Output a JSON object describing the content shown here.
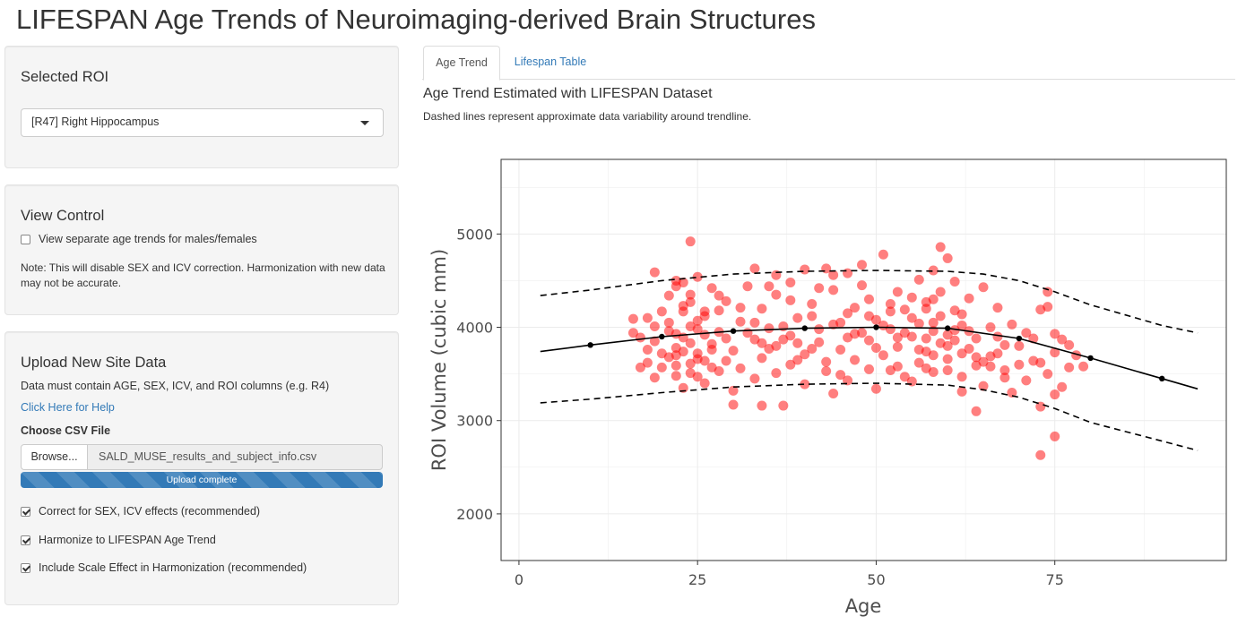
{
  "app": {
    "title": "LIFESPAN Age Trends of Neuroimaging-derived Brain Structures"
  },
  "roi_panel": {
    "heading": "Selected ROI",
    "selected_roi": "[R47] Right Hippocampus"
  },
  "view_panel": {
    "heading": "View Control",
    "sex_checkbox_label": "View separate age trends for males/females",
    "sex_checkbox_checked": false,
    "note": "Note: This will disable SEX and ICV correction. Harmonization with new data may not be accurate."
  },
  "upload_panel": {
    "heading": "Upload New Site Data",
    "instructions": "Data must contain AGE, SEX, ICV, and ROI columns (e.g. R4)",
    "help_link": "Click Here for Help",
    "file_label": "Choose CSV File",
    "browse_label": "Browse...",
    "file_name": "SALD_MUSE_results_and_subject_info.csv",
    "progress_text": "Upload complete",
    "progress_value": 1.0,
    "options": [
      {
        "label": "Correct for SEX, ICV effects (recommended)",
        "checked": true
      },
      {
        "label": "Harmonize to LIFESPAN Age Trend",
        "checked": true
      },
      {
        "label": "Include Scale Effect in Harmonization (recommended)",
        "checked": true
      }
    ]
  },
  "tabs": [
    {
      "label": "Age Trend",
      "active": true
    },
    {
      "label": "Lifespan Table",
      "active": false
    }
  ],
  "main": {
    "chart_title": "Age Trend Estimated with LIFESPAN Dataset",
    "chart_subtitle": "Dashed lines represent approximate data variability around trendline."
  },
  "colors": {
    "points": "#ff0000",
    "link": "#337ab7",
    "progress": "#337ab7"
  },
  "chart_data": {
    "type": "scatter",
    "xlabel": "Age",
    "ylabel": "ROI Volume (cubic mm)",
    "xlim": [
      -2.5,
      99
    ],
    "ylim": [
      1500,
      5800
    ],
    "xticks": [
      0,
      25,
      50,
      75
    ],
    "yticks": [
      2000,
      3000,
      4000,
      5000
    ],
    "grid": true,
    "trend": {
      "x": [
        3,
        10,
        20,
        30,
        40,
        50,
        60,
        70,
        80,
        90,
        95
      ],
      "y": [
        3740,
        3810,
        3900,
        3960,
        3990,
        4000,
        3990,
        3880,
        3670,
        3450,
        3340
      ]
    },
    "trend_markers_x": [
      10,
      20,
      30,
      40,
      50,
      60,
      70,
      80,
      90
    ],
    "upper": {
      "x": [
        3,
        10,
        20,
        30,
        40,
        50,
        60,
        65,
        70,
        75,
        80,
        90,
        95
      ],
      "y": [
        4340,
        4400,
        4500,
        4570,
        4600,
        4610,
        4600,
        4570,
        4500,
        4380,
        4240,
        4020,
        3940
      ]
    },
    "lower": {
      "x": [
        3,
        10,
        20,
        30,
        40,
        50,
        60,
        65,
        70,
        75,
        80,
        90,
        95
      ],
      "y": [
        3190,
        3230,
        3300,
        3360,
        3390,
        3400,
        3380,
        3330,
        3250,
        3130,
        2980,
        2780,
        2680
      ]
    },
    "points": [
      [
        24,
        4920
      ],
      [
        59,
        4860
      ],
      [
        51,
        4780
      ],
      [
        60,
        4740
      ],
      [
        48,
        4670
      ],
      [
        43,
        4630
      ],
      [
        58,
        4610
      ],
      [
        33,
        4630
      ],
      [
        19,
        4590
      ],
      [
        46,
        4580
      ],
      [
        25,
        4540
      ],
      [
        22,
        4500
      ],
      [
        56,
        4510
      ],
      [
        38,
        4480
      ],
      [
        61,
        4490
      ],
      [
        32,
        4440
      ],
      [
        65,
        4430
      ],
      [
        74,
        4380
      ],
      [
        27,
        4420
      ],
      [
        44,
        4400
      ],
      [
        53,
        4380
      ],
      [
        36,
        4350
      ],
      [
        21,
        4340
      ],
      [
        63,
        4310
      ],
      [
        49,
        4300
      ],
      [
        29,
        4280
      ],
      [
        57,
        4270
      ],
      [
        41,
        4250
      ],
      [
        23,
        4230
      ],
      [
        67,
        4210
      ],
      [
        34,
        4200
      ],
      [
        54,
        4190
      ],
      [
        20,
        4170
      ],
      [
        46,
        4150
      ],
      [
        62,
        4140
      ],
      [
        26,
        4120
      ],
      [
        73,
        4190
      ],
      [
        39,
        4100
      ],
      [
        50,
        4080
      ],
      [
        18,
        4100
      ],
      [
        31,
        4060
      ],
      [
        58,
        4050
      ],
      [
        44,
        4030
      ],
      [
        24,
        4010
      ],
      [
        66,
        4000
      ],
      [
        35,
        3990
      ],
      [
        52,
        3980
      ],
      [
        21,
        3960
      ],
      [
        61,
        3970
      ],
      [
        28,
        3950
      ],
      [
        47,
        3930
      ],
      [
        71,
        3940
      ],
      [
        38,
        3910
      ],
      [
        55,
        3900
      ],
      [
        23,
        3890
      ],
      [
        64,
        3880
      ],
      [
        33,
        3870
      ],
      [
        49,
        3860
      ],
      [
        76,
        3870
      ],
      [
        19,
        3850
      ],
      [
        42,
        3840
      ],
      [
        59,
        3830
      ],
      [
        27,
        3820
      ],
      [
        68,
        3810
      ],
      [
        36,
        3800
      ],
      [
        53,
        3790
      ],
      [
        22,
        3780
      ],
      [
        63,
        3770
      ],
      [
        45,
        3760
      ],
      [
        30,
        3750
      ],
      [
        57,
        3740
      ],
      [
        75,
        3730
      ],
      [
        25,
        3720
      ],
      [
        40,
        3710
      ],
      [
        51,
        3700
      ],
      [
        66,
        3690
      ],
      [
        21,
        3680
      ],
      [
        34,
        3670
      ],
      [
        60,
        3660
      ],
      [
        47,
        3650
      ],
      [
        26,
        3640
      ],
      [
        72,
        3640
      ],
      [
        43,
        3630
      ],
      [
        56,
        3620
      ],
      [
        24,
        3610
      ],
      [
        38,
        3600
      ],
      [
        64,
        3590
      ],
      [
        53,
        3580
      ],
      [
        20,
        3570
      ],
      [
        31,
        3560
      ],
      [
        77,
        3570
      ],
      [
        49,
        3550
      ],
      [
        68,
        3540
      ],
      [
        28,
        3530
      ],
      [
        58,
        3520
      ],
      [
        36,
        3510
      ],
      [
        74,
        3500
      ],
      [
        45,
        3490
      ],
      [
        22,
        3480
      ],
      [
        62,
        3470
      ],
      [
        33,
        3450
      ],
      [
        71,
        3430
      ],
      [
        55,
        3420
      ],
      [
        26,
        3400
      ],
      [
        40,
        3390
      ],
      [
        65,
        3370
      ],
      [
        76,
        3360
      ],
      [
        23,
        3350
      ],
      [
        50,
        3340
      ],
      [
        30,
        3320
      ],
      [
        69,
        3300
      ],
      [
        44,
        3290
      ],
      [
        62,
        3310
      ],
      [
        75,
        3280
      ],
      [
        30,
        3170
      ],
      [
        34,
        3160
      ],
      [
        37,
        3160
      ],
      [
        64,
        3100
      ],
      [
        73,
        3150
      ],
      [
        75,
        2830
      ],
      [
        73,
        2630
      ],
      [
        22,
        4440
      ],
      [
        24,
        4350
      ],
      [
        23,
        4170
      ],
      [
        25,
        4070
      ],
      [
        22,
        3930
      ],
      [
        24,
        3830
      ],
      [
        23,
        3740
      ],
      [
        25,
        3660
      ],
      [
        22,
        3590
      ],
      [
        24,
        3510
      ],
      [
        26,
        3920
      ],
      [
        21,
        4050
      ],
      [
        23,
        4480
      ],
      [
        24,
        4270
      ],
      [
        25,
        3980
      ],
      [
        22,
        3700
      ],
      [
        57,
        4200
      ],
      [
        58,
        3960
      ],
      [
        59,
        4120
      ],
      [
        57,
        3880
      ],
      [
        56,
        4040
      ],
      [
        58,
        3700
      ],
      [
        60,
        3800
      ],
      [
        57,
        3560
      ],
      [
        59,
        4380
      ],
      [
        61,
        4180
      ],
      [
        56,
        3760
      ],
      [
        58,
        4300
      ],
      [
        60,
        3920
      ],
      [
        55,
        4100
      ],
      [
        61,
        3860
      ],
      [
        62,
        4020
      ],
      [
        48,
        3940
      ],
      [
        47,
        4210
      ],
      [
        46,
        3890
      ],
      [
        49,
        4120
      ],
      [
        52,
        4250
      ],
      [
        53,
        3890
      ],
      [
        51,
        4020
      ],
      [
        50,
        3780
      ],
      [
        54,
        3940
      ],
      [
        45,
        4050
      ],
      [
        42,
        3980
      ],
      [
        41,
        4120
      ],
      [
        39,
        3830
      ],
      [
        37,
        4010
      ],
      [
        35,
        3770
      ],
      [
        32,
        3940
      ],
      [
        29,
        3880
      ],
      [
        28,
        4180
      ],
      [
        27,
        3760
      ],
      [
        17,
        3890
      ],
      [
        18,
        3760
      ],
      [
        19,
        4010
      ],
      [
        16,
        4090
      ],
      [
        67,
        3720
      ],
      [
        69,
        4030
      ],
      [
        70,
        3800
      ],
      [
        72,
        3880
      ],
      [
        73,
        3620
      ],
      [
        77,
        3810
      ],
      [
        78,
        3700
      ],
      [
        79,
        3580
      ],
      [
        70,
        3600
      ],
      [
        74,
        4220
      ],
      [
        75,
        3930
      ],
      [
        66,
        3580
      ],
      [
        67,
        3900
      ],
      [
        68,
        3460
      ],
      [
        63,
        3960
      ],
      [
        64,
        3680
      ],
      [
        42,
        4420
      ],
      [
        38,
        4290
      ],
      [
        35,
        4440
      ],
      [
        31,
        4210
      ],
      [
        28,
        4340
      ],
      [
        26,
        4170
      ],
      [
        52,
        4170
      ],
      [
        55,
        4320
      ],
      [
        48,
        4450
      ],
      [
        44,
        4560
      ],
      [
        40,
        4620
      ],
      [
        36,
        4560
      ],
      [
        33,
        4050
      ],
      [
        39,
        3650
      ],
      [
        43,
        3530
      ],
      [
        46,
        3430
      ],
      [
        52,
        3540
      ],
      [
        54,
        3470
      ],
      [
        60,
        3540
      ],
      [
        65,
        3630
      ],
      [
        41,
        3770
      ],
      [
        37,
        3870
      ],
      [
        34,
        3830
      ],
      [
        29,
        3640
      ],
      [
        27,
        3570
      ],
      [
        25,
        3470
      ],
      [
        20,
        3720
      ],
      [
        18,
        3620
      ],
      [
        17,
        3570
      ],
      [
        19,
        3460
      ],
      [
        16,
        3940
      ],
      [
        62,
        3720
      ]
    ]
  }
}
